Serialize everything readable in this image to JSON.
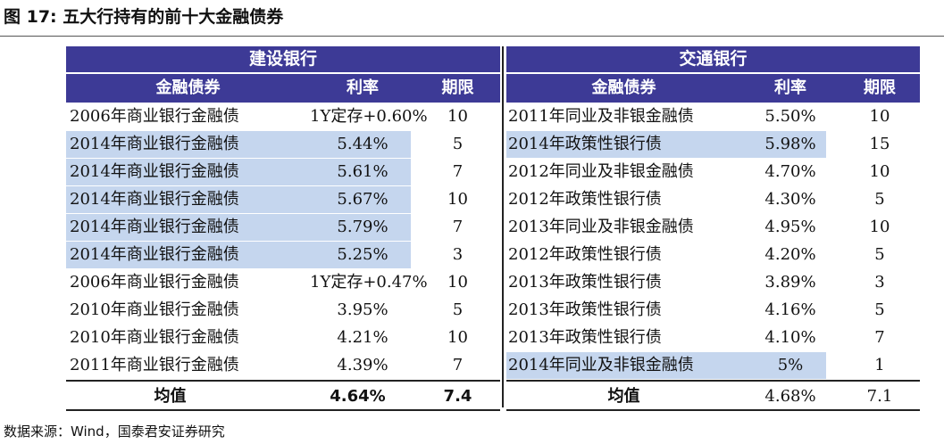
{
  "figure": {
    "title": "图 17:  五大行持有的前十大金融债券",
    "source": "数据来源：Wind，国泰君安证券研究"
  },
  "left": {
    "bank": "建设银行",
    "headers": [
      "金融债券",
      "利率",
      "期限"
    ],
    "rows": [
      {
        "bond": "2006年商业银行金融债",
        "rate": "1Y定存+0.60%",
        "term": "10",
        "highlight": false
      },
      {
        "bond": "2014年商业银行金融债",
        "rate": "5.44%",
        "term": "5",
        "highlight": true
      },
      {
        "bond": "2014年商业银行金融债",
        "rate": "5.61%",
        "term": "7",
        "highlight": true
      },
      {
        "bond": "2014年商业银行金融债",
        "rate": "5.67%",
        "term": "10",
        "highlight": true
      },
      {
        "bond": "2014年商业银行金融债",
        "rate": "5.79%",
        "term": "7",
        "highlight": true
      },
      {
        "bond": "2014年商业银行金融债",
        "rate": "5.25%",
        "term": "3",
        "highlight": true
      },
      {
        "bond": "2006年商业银行金融债",
        "rate": "1Y定存+0.47%",
        "term": "10",
        "highlight": false
      },
      {
        "bond": "2010年商业银行金融债",
        "rate": "3.95%",
        "term": "5",
        "highlight": false
      },
      {
        "bond": "2010年商业银行金融债",
        "rate": "4.21%",
        "term": "10",
        "highlight": false
      },
      {
        "bond": "2011年商业银行金融债",
        "rate": "4.39%",
        "term": "7",
        "highlight": false
      }
    ],
    "average": {
      "label": "均值",
      "rate": "4.64%",
      "term": "7.4"
    }
  },
  "right": {
    "bank": "交通银行",
    "headers": [
      "金融债券",
      "利率",
      "期限"
    ],
    "rows": [
      {
        "bond": "2011年同业及非银金融债",
        "rate": "5.50%",
        "term": "10",
        "highlight": false
      },
      {
        "bond": "2014年政策性银行债",
        "rate": "5.98%",
        "term": "15",
        "highlight": true
      },
      {
        "bond": "2012年同业及非银金融债",
        "rate": "4.70%",
        "term": "10",
        "highlight": false
      },
      {
        "bond": "2012年政策性银行债",
        "rate": "4.30%",
        "term": "5",
        "highlight": false
      },
      {
        "bond": "2013年同业及非银金融债",
        "rate": "4.95%",
        "term": "10",
        "highlight": false
      },
      {
        "bond": "2012年政策性银行债",
        "rate": "4.20%",
        "term": "5",
        "highlight": false
      },
      {
        "bond": "2013年政策性银行债",
        "rate": "3.89%",
        "term": "3",
        "highlight": false
      },
      {
        "bond": "2013年政策性银行债",
        "rate": "4.16%",
        "term": "5",
        "highlight": false
      },
      {
        "bond": "2013年政策性银行债",
        "rate": "4.10%",
        "term": "7",
        "highlight": false
      },
      {
        "bond": "2014年同业及非银金融债",
        "rate": "5%",
        "term": "1",
        "highlight": true
      }
    ],
    "average": {
      "label": "均值",
      "rate": "4.68%",
      "term": "7.1"
    }
  }
}
